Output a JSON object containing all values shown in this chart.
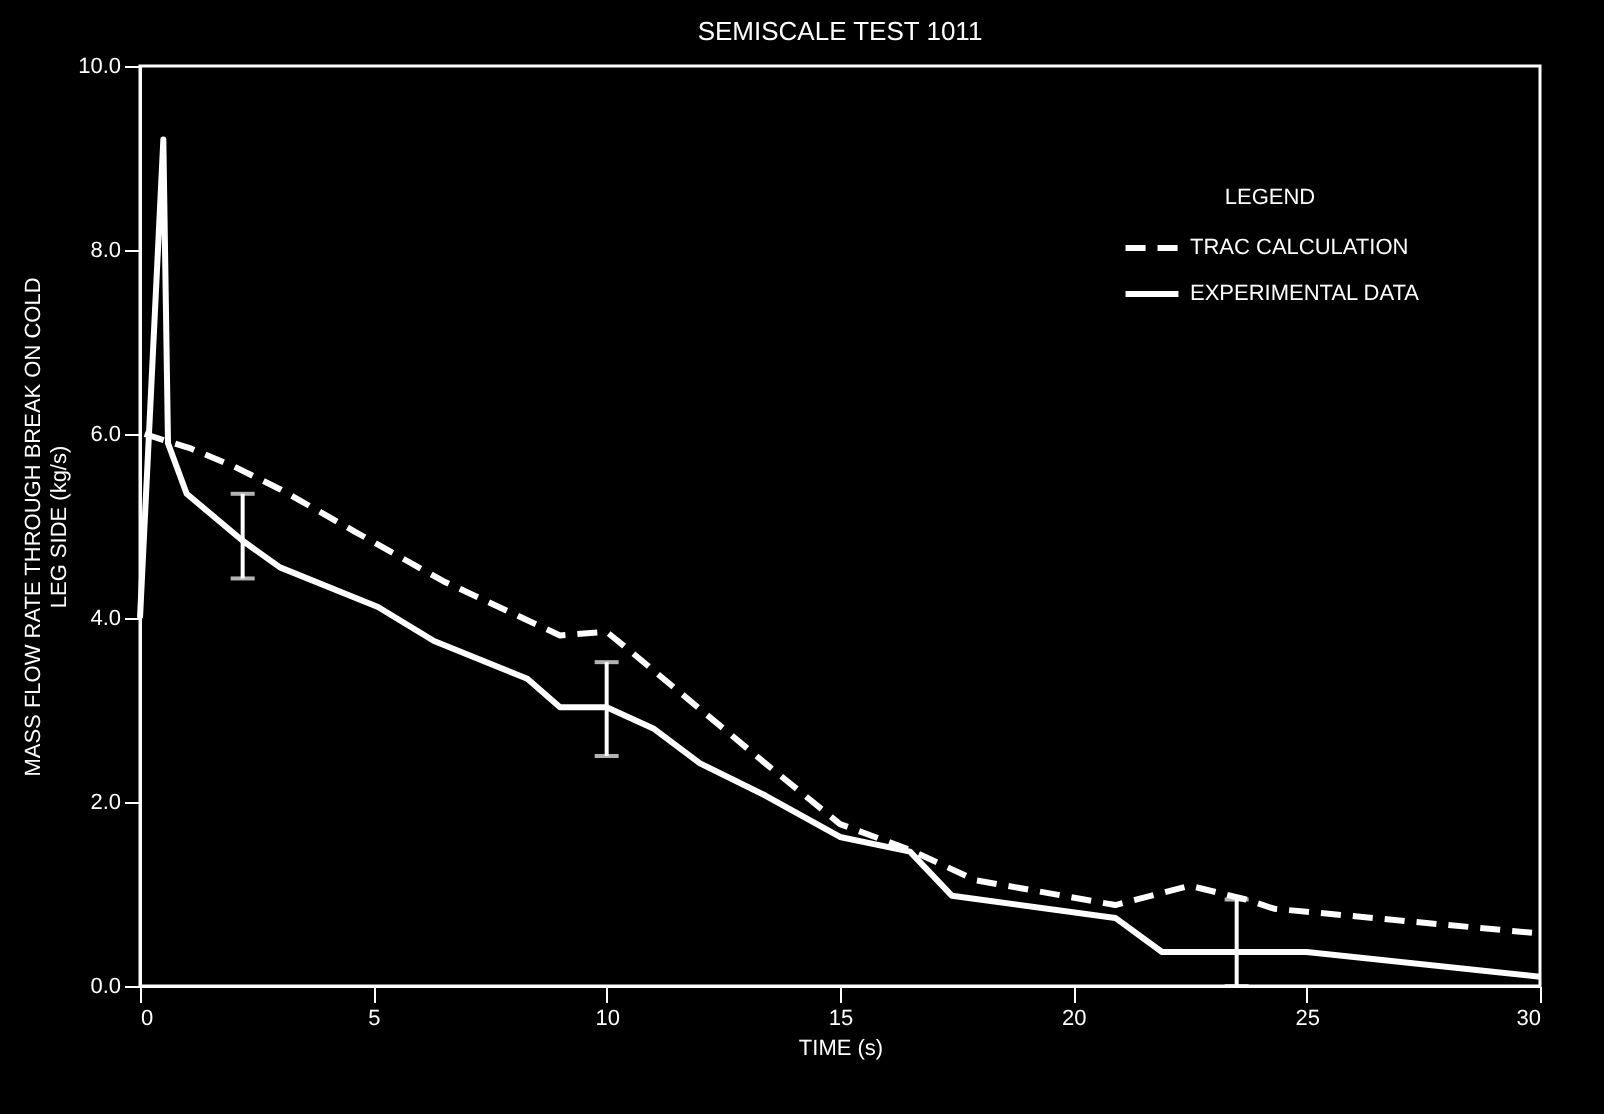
{
  "chart_data": {
    "type": "line",
    "title": "SEMISCALE TEST 1011",
    "xlabel": "TIME (s)",
    "ylabel": [
      "MASS FLOW RATE THROUGH BREAK ON COLD",
      "LEG SIDE (kg/s)"
    ],
    "legend_title": "LEGEND",
    "legend": "top right",
    "xlim": [
      0,
      30
    ],
    "ylim": [
      0,
      10
    ],
    "xticks": [
      0,
      5,
      10,
      15,
      20,
      25,
      30
    ],
    "yticks": [
      {
        "value": 0,
        "label": "0.0"
      },
      {
        "value": 2,
        "label": "2.0"
      },
      {
        "value": 4,
        "label": "4.0"
      },
      {
        "value": 6,
        "label": "6.0"
      },
      {
        "value": 8,
        "label": "8.0"
      },
      {
        "value": 10,
        "label": "10.0"
      }
    ],
    "series": [
      {
        "name": "TRAC CALCULATION",
        "color": "#ffffff",
        "line_style": "dashed",
        "x": [
          0.1,
          1.1,
          2,
          3,
          4.6,
          6.5,
          9,
          10,
          10.6,
          13.4,
          15,
          16.5,
          17.9,
          20.9,
          22.5,
          23.7,
          24.3,
          30
        ],
        "values": [
          6.0,
          5.84,
          5.65,
          5.4,
          4.94,
          4.4,
          3.81,
          3.85,
          3.6,
          2.42,
          1.76,
          1.48,
          1.15,
          0.88,
          1.09,
          0.94,
          0.84,
          0.57
        ]
      },
      {
        "name": "EXPERIMENTAL DATA",
        "color": "#ffffff",
        "line_style": "solid",
        "x": [
          0,
          0.5,
          0.6,
          1,
          2.2,
          3,
          5.1,
          6.3,
          8.3,
          9,
          10,
          11,
          12,
          13.4,
          15,
          16.5,
          17.4,
          20.9,
          21.9,
          23.5,
          25,
          30
        ],
        "values": [
          4.0,
          9.2,
          5.9,
          5.35,
          4.84,
          4.55,
          4.12,
          3.75,
          3.34,
          3.03,
          3.03,
          2.8,
          2.42,
          2.07,
          1.62,
          1.46,
          0.98,
          0.74,
          0.37,
          0.37,
          0.37,
          0.1
        ],
        "errors": [
          null,
          null,
          null,
          null,
          [
            4.43,
            5.35
          ],
          null,
          null,
          null,
          null,
          null,
          [
            2.5,
            3.52
          ],
          null,
          null,
          null,
          null,
          null,
          null,
          null,
          null,
          [
            0,
            0.94
          ],
          null,
          null
        ]
      }
    ]
  }
}
